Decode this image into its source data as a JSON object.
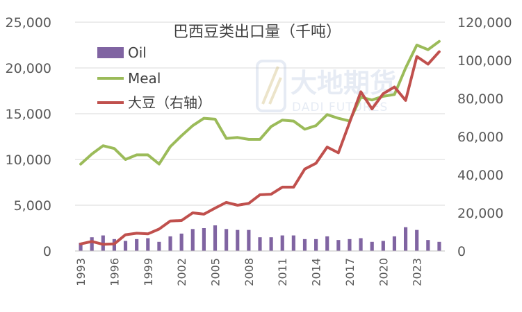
{
  "chart_data": {
    "type": "bar+line",
    "title": "巴西豆类出口量（千吨）",
    "categories": [
      "1993",
      "1994",
      "1995",
      "1996",
      "1997",
      "1998",
      "1999",
      "2000",
      "2001",
      "2002",
      "2003",
      "2004",
      "2005",
      "2006",
      "2007",
      "2008",
      "2009",
      "2010",
      "2011",
      "2012",
      "2013",
      "2014",
      "2015",
      "2016",
      "2017",
      "2018",
      "2019",
      "2020",
      "2021",
      "2022",
      "2023",
      "2024",
      "2025"
    ],
    "x_tick_labels": [
      "1993",
      "1996",
      "1999",
      "2002",
      "2005",
      "2008",
      "2011",
      "2014",
      "2017",
      "2020",
      "2023"
    ],
    "y_left": {
      "ticks": [
        "0",
        "5,000",
        "10,000",
        "15,000",
        "20,000",
        "25,000"
      ],
      "min": 0,
      "max": 25000
    },
    "y_right": {
      "ticks": [
        "0",
        "20,000",
        "40,000",
        "60,000",
        "80,000",
        "100,000",
        "120,000"
      ],
      "min": 0,
      "max": 120000
    },
    "legend_position": "top-left",
    "grid": "horizontal",
    "series": [
      {
        "name": "Oil",
        "type": "bar",
        "axis": "left",
        "color": "#8064a2",
        "values": [
          900,
          1500,
          1700,
          1300,
          1100,
          1300,
          1400,
          1000,
          1600,
          1900,
          2400,
          2500,
          2800,
          2400,
          2300,
          2300,
          1500,
          1500,
          1700,
          1700,
          1300,
          1300,
          1600,
          1200,
          1300,
          1400,
          1000,
          1100,
          1600,
          2600,
          2300,
          1200,
          1000
        ]
      },
      {
        "name": "Meal",
        "type": "line",
        "axis": "left",
        "color": "#9bbb59",
        "values": [
          9500,
          10600,
          11500,
          11200,
          10000,
          10500,
          10500,
          9500,
          11400,
          12600,
          13700,
          14500,
          14400,
          12300,
          12400,
          12200,
          12200,
          13600,
          14300,
          14200,
          13300,
          13700,
          14900,
          14500,
          14200,
          16800,
          16500,
          16900,
          17100,
          20000,
          22500,
          22000,
          22900
        ]
      },
      {
        "name": "大豆（右轴）",
        "type": "line",
        "axis": "right",
        "color": "#c0504d",
        "values": [
          3700,
          5000,
          3500,
          3700,
          8500,
          9300,
          9000,
          11500,
          15700,
          16000,
          20000,
          19300,
          22500,
          25500,
          24000,
          25000,
          29500,
          29800,
          33500,
          33500,
          43000,
          46000,
          54500,
          51500,
          67500,
          83500,
          74500,
          82500,
          86000,
          79000,
          102000,
          98000,
          104500
        ]
      }
    ],
    "watermark": {
      "cn": "大地期货",
      "en": "DADI FUTURES"
    }
  }
}
